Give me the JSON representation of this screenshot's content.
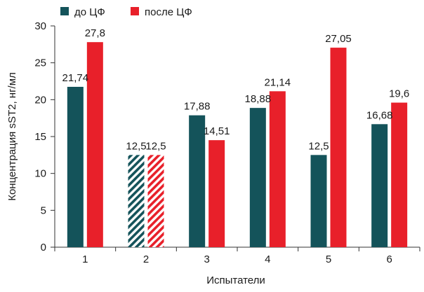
{
  "chart_data": {
    "type": "bar",
    "categories": [
      "1",
      "2",
      "3",
      "4",
      "5",
      "6"
    ],
    "series": [
      {
        "name": "до ЦФ",
        "color": "#14535a",
        "values": [
          21.74,
          12.5,
          17.88,
          18.88,
          12.5,
          16.68
        ],
        "labels": [
          "21,74",
          "12,5",
          "17,88",
          "18,88",
          "12,5",
          "16,68"
        ]
      },
      {
        "name": "после ЦФ",
        "color": "#e8202a",
        "values": [
          27.8,
          12.5,
          14.51,
          21.14,
          27.05,
          19.6
        ],
        "labels": [
          "27,8",
          "12,5",
          "14,51",
          "21,14",
          "27,05",
          "19,6"
        ]
      }
    ],
    "hatched_categories": [
      "2"
    ],
    "xlabel": "Испытатели",
    "ylabel": "Концентрация sST2, нг/мл",
    "ylim": [
      0,
      30
    ],
    "yticks": [
      0,
      5,
      10,
      15,
      20,
      25,
      30
    ],
    "grid": false,
    "legend_position": "top-left"
  }
}
